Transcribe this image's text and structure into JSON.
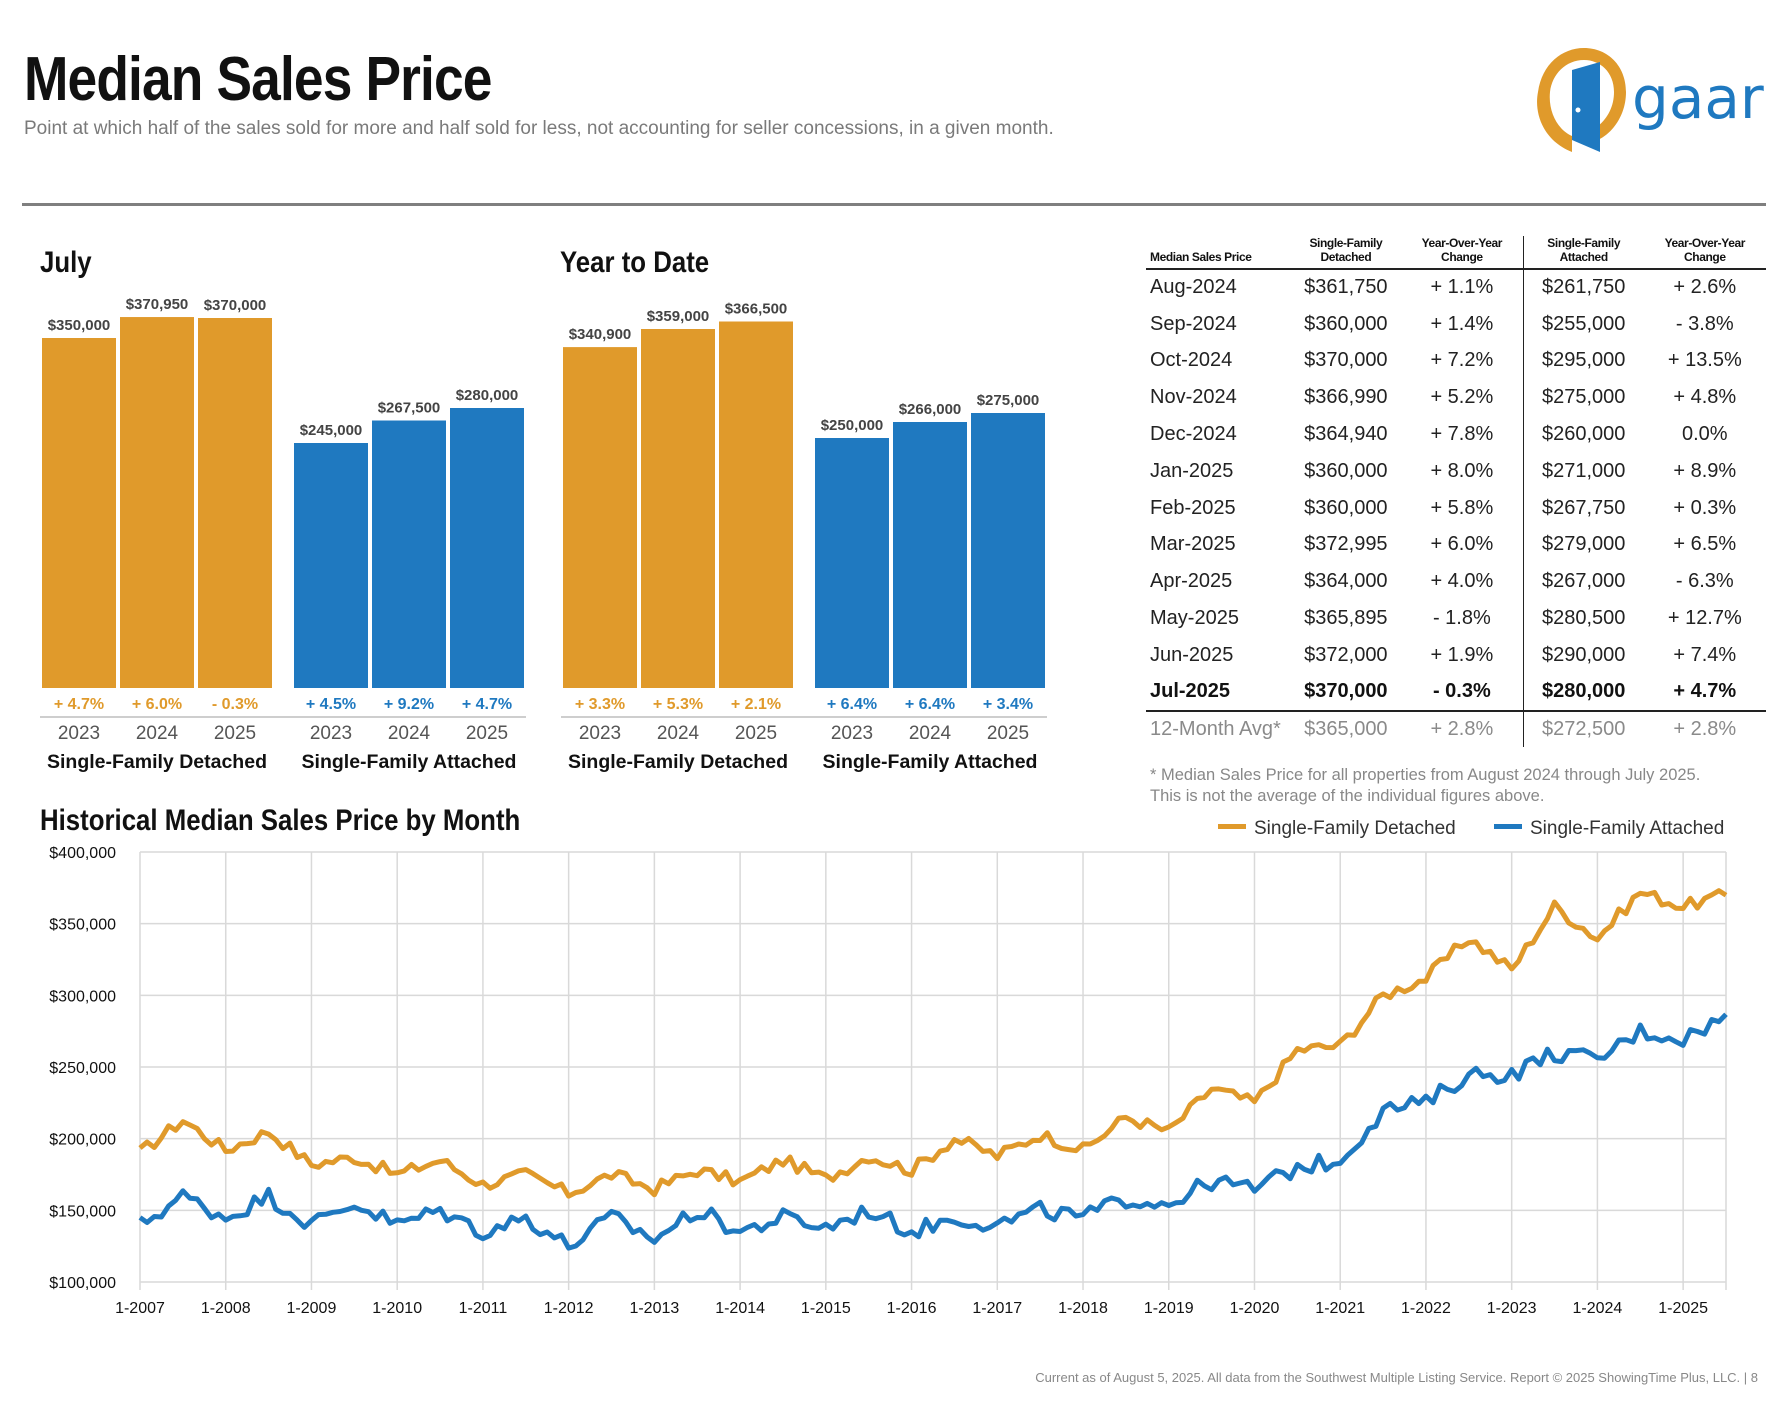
{
  "header": {
    "title": "Median Sales Price",
    "subtitle": "Point at which half of the sales sold for more and half sold for less, not accounting for seller concessions, in a given month."
  },
  "logo": {
    "text": "gaar",
    "colors": {
      "orange": "#e09a2b",
      "blue": "#1f79c0"
    }
  },
  "colors": {
    "detached": "#e09a2b",
    "attached": "#1f79c0",
    "grid": "#d9d9d9"
  },
  "sections": {
    "july_heading": "July",
    "ytd_heading": "Year to Date",
    "historical_heading": "Historical Median Sales Price by Month"
  },
  "chart_data": [
    {
      "type": "bar",
      "title": "July",
      "groups": [
        {
          "name": "Single-Family Detached",
          "color": "#e09a2b",
          "categories": [
            "2023",
            "2024",
            "2025"
          ],
          "values": [
            350000,
            370950,
            370000
          ],
          "value_labels": [
            "$350,000",
            "$370,950",
            "$370,000"
          ],
          "change_labels": [
            "+ 4.7%",
            "+ 6.0%",
            "- 0.3%"
          ]
        },
        {
          "name": "Single-Family Attached",
          "color": "#1f79c0",
          "categories": [
            "2023",
            "2024",
            "2025"
          ],
          "values": [
            245000,
            267500,
            280000
          ],
          "value_labels": [
            "$245,000",
            "$267,500",
            "$280,000"
          ],
          "change_labels": [
            "+ 4.5%",
            "+ 9.2%",
            "+ 4.7%"
          ]
        }
      ]
    },
    {
      "type": "bar",
      "title": "Year to Date",
      "groups": [
        {
          "name": "Single-Family Detached",
          "color": "#e09a2b",
          "categories": [
            "2023",
            "2024",
            "2025"
          ],
          "values": [
            340900,
            359000,
            366500
          ],
          "value_labels": [
            "$340,900",
            "$359,000",
            "$366,500"
          ],
          "change_labels": [
            "+ 3.3%",
            "+ 5.3%",
            "+ 2.1%"
          ]
        },
        {
          "name": "Single-Family Attached",
          "color": "#1f79c0",
          "categories": [
            "2023",
            "2024",
            "2025"
          ],
          "values": [
            250000,
            266000,
            275000
          ],
          "value_labels": [
            "$250,000",
            "$266,000",
            "$275,000"
          ],
          "change_labels": [
            "+ 6.4%",
            "+ 6.4%",
            "+ 3.4%"
          ]
        }
      ]
    },
    {
      "type": "table",
      "headers": [
        "Median Sales Price",
        "Single-Family Detached",
        "Year-Over-Year Change",
        "Single-Family Attached",
        "Year-Over-Year Change"
      ],
      "rows": [
        [
          "Aug-2024",
          "$361,750",
          "+ 1.1%",
          "$261,750",
          "+ 2.6%"
        ],
        [
          "Sep-2024",
          "$360,000",
          "+ 1.4%",
          "$255,000",
          "- 3.8%"
        ],
        [
          "Oct-2024",
          "$370,000",
          "+ 7.2%",
          "$295,000",
          "+ 13.5%"
        ],
        [
          "Nov-2024",
          "$366,990",
          "+ 5.2%",
          "$275,000",
          "+ 4.8%"
        ],
        [
          "Dec-2024",
          "$364,940",
          "+ 7.8%",
          "$260,000",
          "0.0%"
        ],
        [
          "Jan-2025",
          "$360,000",
          "+ 8.0%",
          "$271,000",
          "+ 8.9%"
        ],
        [
          "Feb-2025",
          "$360,000",
          "+ 5.8%",
          "$267,750",
          "+ 0.3%"
        ],
        [
          "Mar-2025",
          "$372,995",
          "+ 6.0%",
          "$279,000",
          "+ 6.5%"
        ],
        [
          "Apr-2025",
          "$364,000",
          "+ 4.0%",
          "$267,000",
          "- 6.3%"
        ],
        [
          "May-2025",
          "$365,895",
          "- 1.8%",
          "$280,500",
          "+ 12.7%"
        ],
        [
          "Jun-2025",
          "$372,000",
          "+ 1.9%",
          "$290,000",
          "+ 7.4%"
        ],
        [
          "Jul-2025",
          "$370,000",
          "- 0.3%",
          "$280,000",
          "+ 4.7%"
        ]
      ],
      "avg_row": [
        "12-Month Avg*",
        "$365,000",
        "+ 2.8%",
        "$272,500",
        "+ 2.8%"
      ],
      "footnote": [
        "* Median Sales Price for all properties from August 2024 through July 2025.",
        "This is not the average of the individual figures above."
      ]
    },
    {
      "type": "line",
      "title": "Historical Median Sales Price by Month",
      "ylim": [
        100000,
        400000
      ],
      "yticks": [
        100000,
        150000,
        200000,
        250000,
        300000,
        350000,
        400000
      ],
      "ytick_labels": [
        "$100,000",
        "$150,000",
        "$200,000",
        "$250,000",
        "$300,000",
        "$350,000",
        "$400,000"
      ],
      "xtick_labels": [
        "1-2007",
        "1-2008",
        "1-2009",
        "1-2010",
        "1-2011",
        "1-2012",
        "1-2013",
        "1-2014",
        "1-2015",
        "1-2016",
        "1-2017",
        "1-2018",
        "1-2019",
        "1-2020",
        "1-2021",
        "1-2022",
        "1-2023",
        "1-2024",
        "1-2025"
      ],
      "x_start": "1-2007",
      "x_end": "7-2025",
      "grid": true,
      "legend_position": "top-right",
      "series": [
        {
          "name": "Single-Family Detached",
          "color": "#e09a2b",
          "annual_points": [
            [
              2007,
              190000
            ],
            [
              2007.5,
              213000
            ],
            [
              2008,
              192000
            ],
            [
              2008.5,
              205000
            ],
            [
              2009,
              182000
            ],
            [
              2009.5,
              187000
            ],
            [
              2010,
              175000
            ],
            [
              2010.5,
              185000
            ],
            [
              2011,
              168000
            ],
            [
              2011.5,
              175000
            ],
            [
              2012,
              162000
            ],
            [
              2012.5,
              175000
            ],
            [
              2013,
              165000
            ],
            [
              2013.5,
              178000
            ],
            [
              2014,
              170000
            ],
            [
              2014.5,
              185000
            ],
            [
              2015,
              172000
            ],
            [
              2015.5,
              188000
            ],
            [
              2016,
              178000
            ],
            [
              2016.5,
              200000
            ],
            [
              2017,
              188000
            ],
            [
              2017.5,
              203000
            ],
            [
              2018,
              192000
            ],
            [
              2018.5,
              215000
            ],
            [
              2019,
              205000
            ],
            [
              2019.5,
              235000
            ],
            [
              2020,
              225000
            ],
            [
              2020.5,
              262000
            ],
            [
              2021,
              265000
            ],
            [
              2021.5,
              300000
            ],
            [
              2022,
              312000
            ],
            [
              2022.5,
              340000
            ],
            [
              2023,
              318000
            ],
            [
              2023.5,
              362000
            ],
            [
              2024,
              340000
            ],
            [
              2024.5,
              372000
            ],
            [
              2025,
              362000
            ],
            [
              2025.5,
              370000
            ]
          ]
        },
        {
          "name": "Single-Family Attached",
          "color": "#1f79c0",
          "annual_points": [
            [
              2007,
              140000
            ],
            [
              2007.5,
              160000
            ],
            [
              2008,
              145000
            ],
            [
              2008.5,
              160000
            ],
            [
              2009,
              140000
            ],
            [
              2009.5,
              155000
            ],
            [
              2010,
              140000
            ],
            [
              2010.5,
              150000
            ],
            [
              2011,
              135000
            ],
            [
              2011.5,
              145000
            ],
            [
              2012,
              125000
            ],
            [
              2012.5,
              145000
            ],
            [
              2013,
              130000
            ],
            [
              2013.5,
              150000
            ],
            [
              2014,
              135000
            ],
            [
              2014.5,
              145000
            ],
            [
              2015,
              138000
            ],
            [
              2015.5,
              150000
            ],
            [
              2016,
              135000
            ],
            [
              2016.5,
              145000
            ],
            [
              2017,
              140000
            ],
            [
              2017.5,
              150000
            ],
            [
              2018,
              145000
            ],
            [
              2018.5,
              158000
            ],
            [
              2019,
              155000
            ],
            [
              2019.5,
              170000
            ],
            [
              2020,
              165000
            ],
            [
              2020.5,
              180000
            ],
            [
              2021,
              185000
            ],
            [
              2021.5,
              220000
            ],
            [
              2022,
              225000
            ],
            [
              2022.5,
              245000
            ],
            [
              2023,
              245000
            ],
            [
              2023.5,
              260000
            ],
            [
              2024,
              255000
            ],
            [
              2024.5,
              275000
            ],
            [
              2025,
              270000
            ],
            [
              2025.5,
              285000
            ]
          ]
        }
      ]
    }
  ],
  "footer": "Current as of August 5, 2025. All data from the Southwest Multiple Listing Service. Report © 2025 ShowingTime Plus, LLC.  |  8"
}
